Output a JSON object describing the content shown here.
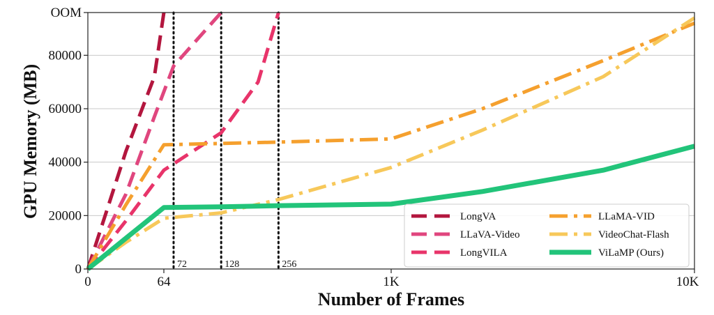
{
  "chart_data": {
    "type": "line",
    "xlabel": "Number of Frames",
    "ylabel": "GPU Memory (MB)",
    "x_ticks": [
      {
        "pos": 0,
        "label": "0"
      },
      {
        "pos": 64,
        "label": "64"
      },
      {
        "pos": 1000,
        "label": "1K"
      },
      {
        "pos": 10000,
        "label": "10K"
      }
    ],
    "y_ticks": [
      {
        "value": 0,
        "label": "0"
      },
      {
        "value": 20000,
        "label": "20000"
      },
      {
        "value": 40000,
        "label": "40000"
      },
      {
        "value": 60000,
        "label": "60000"
      },
      {
        "value": 80000,
        "label": "80000"
      },
      {
        "value": 96000,
        "label": "OOM"
      }
    ],
    "ylim": [
      0,
      96000
    ],
    "grid": "horizontal",
    "legend_position": "bottom-right",
    "vlines": [
      {
        "x": 72,
        "label": "72"
      },
      {
        "x": 128,
        "label": "128"
      },
      {
        "x": 256,
        "label": "256"
      }
    ],
    "series": [
      {
        "name": "LongVA",
        "color": "#b3163e",
        "style": "dashed",
        "points": [
          [
            0,
            0
          ],
          [
            8,
            11000
          ],
          [
            16,
            22000
          ],
          [
            32,
            44000
          ],
          [
            56,
            72000
          ],
          [
            64,
            96000
          ]
        ]
      },
      {
        "name": "LLaVA-Video",
        "color": "#e0467e",
        "style": "dashed",
        "points": [
          [
            0,
            0
          ],
          [
            16,
            14000
          ],
          [
            32,
            28000
          ],
          [
            56,
            57000
          ],
          [
            72,
            76000
          ],
          [
            128,
            96000
          ]
        ]
      },
      {
        "name": "LongVILA",
        "color": "#e8346a",
        "style": "dashed",
        "points": [
          [
            0,
            0
          ],
          [
            16,
            9000
          ],
          [
            32,
            18000
          ],
          [
            64,
            37000
          ],
          [
            128,
            51000
          ],
          [
            200,
            70000
          ],
          [
            256,
            96000
          ]
        ]
      },
      {
        "name": "LLaMA-VID",
        "color": "#f5a02e",
        "style": "dashdot",
        "points": [
          [
            0,
            0
          ],
          [
            32,
            24000
          ],
          [
            64,
            46500
          ],
          [
            128,
            47000
          ],
          [
            256,
            47500
          ],
          [
            1000,
            48700
          ],
          [
            2000,
            60000
          ],
          [
            5000,
            78000
          ],
          [
            10000,
            92000
          ]
        ]
      },
      {
        "name": "VideoChat-Flash",
        "color": "#f7c85a",
        "style": "dashdot",
        "points": [
          [
            0,
            0
          ],
          [
            32,
            10000
          ],
          [
            64,
            19000
          ],
          [
            128,
            21000
          ],
          [
            256,
            26000
          ],
          [
            1000,
            38000
          ],
          [
            2000,
            52000
          ],
          [
            5000,
            72000
          ],
          [
            10000,
            94000
          ]
        ]
      },
      {
        "name": "ViLaMP (Ours)",
        "color": "#22c47a",
        "style": "solid",
        "points": [
          [
            0,
            0
          ],
          [
            32,
            11500
          ],
          [
            64,
            23000
          ],
          [
            128,
            23300
          ],
          [
            256,
            23700
          ],
          [
            1000,
            24300
          ],
          [
            2000,
            29000
          ],
          [
            5000,
            37000
          ],
          [
            10000,
            46000
          ]
        ]
      }
    ]
  }
}
